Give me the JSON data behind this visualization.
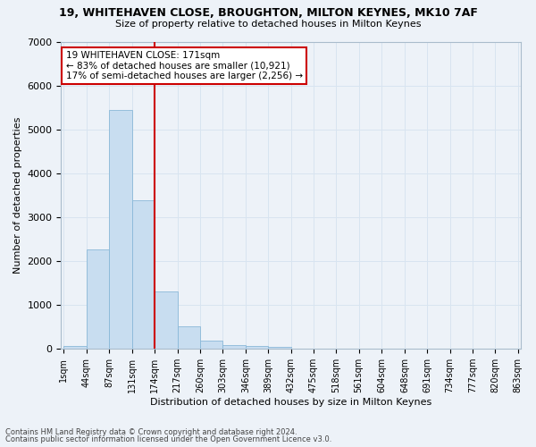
{
  "title": "19, WHITEHAVEN CLOSE, BROUGHTON, MILTON KEYNES, MK10 7AF",
  "subtitle": "Size of property relative to detached houses in Milton Keynes",
  "xlabel": "Distribution of detached houses by size in Milton Keynes",
  "ylabel": "Number of detached properties",
  "footer_line1": "Contains HM Land Registry data © Crown copyright and database right 2024.",
  "footer_line2": "Contains public sector information licensed under the Open Government Licence v3.0.",
  "bar_color": "#c8ddf0",
  "bar_edge_color": "#8ab8d8",
  "grid_color": "#d8e4f0",
  "background_color": "#edf2f8",
  "axes_background": "#edf2f8",
  "vline_color": "#cc0000",
  "vline_bin_index": 4,
  "annotation_line1": "19 WHITEHAVEN CLOSE: 171sqm",
  "annotation_line2": "← 83% of detached houses are smaller (10,921)",
  "annotation_line3": "17% of semi-detached houses are larger (2,256) →",
  "annotation_box_color": "#ffffff",
  "annotation_box_edge": "#cc0000",
  "bins": [
    1,
    44,
    87,
    131,
    174,
    217,
    260,
    303,
    346,
    389,
    432,
    475,
    518,
    561,
    604,
    648,
    691,
    734,
    777,
    820,
    863
  ],
  "bin_labels": [
    "1sqm",
    "44sqm",
    "87sqm",
    "131sqm",
    "174sqm",
    "217sqm",
    "260sqm",
    "303sqm",
    "346sqm",
    "389sqm",
    "432sqm",
    "475sqm",
    "518sqm",
    "561sqm",
    "604sqm",
    "648sqm",
    "691sqm",
    "734sqm",
    "777sqm",
    "820sqm",
    "863sqm"
  ],
  "values": [
    70,
    2270,
    5450,
    3380,
    1310,
    510,
    185,
    95,
    70,
    50,
    0,
    0,
    0,
    0,
    0,
    0,
    0,
    0,
    0,
    0
  ],
  "ylim": [
    0,
    7000
  ],
  "yticks": [
    0,
    1000,
    2000,
    3000,
    4000,
    5000,
    6000,
    7000
  ],
  "title_fontsize": 9,
  "subtitle_fontsize": 8,
  "ylabel_fontsize": 8,
  "xlabel_fontsize": 8,
  "tick_fontsize": 7,
  "footer_fontsize": 6,
  "annotation_fontsize": 7.5
}
